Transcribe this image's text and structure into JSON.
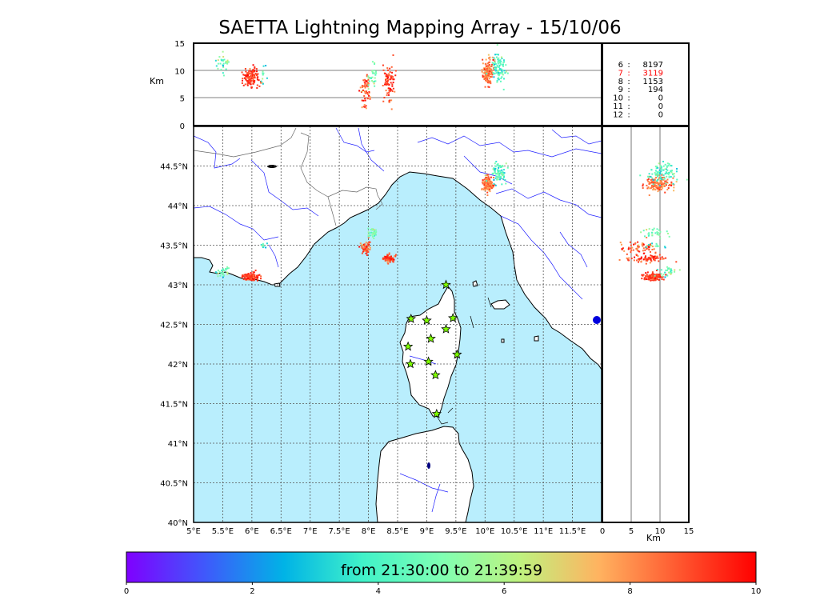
{
  "title": "SAETTA Lightning Mapping Array - 15/10/06",
  "colorbar_text": "from 21:30:00 to 21:39:59",
  "chart_data": {
    "type": "scatter",
    "time_colorbar": {
      "ticks": [
        "0",
        "2",
        "4",
        "6",
        "8",
        "10"
      ],
      "range": [
        0,
        10
      ],
      "colormap": "rainbow",
      "stops": [
        "#7f00ff",
        "#3f59fb",
        "#00b3e6",
        "#40f2c9",
        "#7fffb3",
        "#bff27f",
        "#ffb360",
        "#ff5930",
        "#ff0000"
      ]
    },
    "alt_lon_panel": {
      "ylabel": "Km",
      "ylim": [
        0,
        15
      ],
      "yticks": [
        "0",
        "5",
        "10",
        "15"
      ]
    },
    "map_panel": {
      "xlim": [
        5,
        12
      ],
      "ylim": [
        40,
        45
      ],
      "xticks": [
        "5°E",
        "5.5°E",
        "6°E",
        "6.5°E",
        "7°E",
        "7.5°E",
        "8°E",
        "8.5°E",
        "9°E",
        "9.5°E",
        "10°E",
        "10.5°E",
        "11°E",
        "11.5°E"
      ],
      "yticks": [
        "40°N",
        "40.5°N",
        "41°N",
        "41.5°N",
        "42°N",
        "42.5°N",
        "43°N",
        "43.5°N",
        "44°N",
        "44.5°N"
      ],
      "grid": true,
      "sea_color": "#b9eefd"
    },
    "lat_alt_panel": {
      "xlabel": "Km",
      "xlim": [
        0,
        15
      ],
      "xticks": [
        "0",
        "5",
        "10",
        "15"
      ]
    },
    "station_counts": [
      {
        "stations": "6",
        "count": "8197",
        "color": "#000000"
      },
      {
        "stations": "7",
        "count": "3119",
        "color": "#ff0000"
      },
      {
        "stations": "8",
        "count": "1153",
        "color": "#000000"
      },
      {
        "stations": "9",
        "count": "194",
        "color": "#000000"
      },
      {
        "stations": "10",
        "count": "0",
        "color": "#000000"
      },
      {
        "stations": "11",
        "count": "0",
        "color": "#000000"
      },
      {
        "stations": "12",
        "count": "0",
        "color": "#000000"
      }
    ],
    "stations": [
      {
        "lon": 9.33,
        "lat": 43.0
      },
      {
        "lon": 8.73,
        "lat": 42.57
      },
      {
        "lon": 9.0,
        "lat": 42.55
      },
      {
        "lon": 9.45,
        "lat": 42.58
      },
      {
        "lon": 9.33,
        "lat": 42.44
      },
      {
        "lon": 9.07,
        "lat": 42.32
      },
      {
        "lon": 8.68,
        "lat": 42.22
      },
      {
        "lon": 9.52,
        "lat": 42.12
      },
      {
        "lon": 9.03,
        "lat": 42.03
      },
      {
        "lon": 8.72,
        "lat": 42.0
      },
      {
        "lon": 9.15,
        "lat": 41.86
      },
      {
        "lon": 9.17,
        "lat": 41.37
      }
    ],
    "clusters": [
      {
        "lon": 10.05,
        "lat": 44.27,
        "lon_sd": 0.05,
        "lat_sd": 0.05,
        "alt": 9.8,
        "alt_sd": 1.2,
        "n": 140,
        "t": 8.3,
        "t_sd": 0.6
      },
      {
        "lon": 10.22,
        "lat": 44.42,
        "lon_sd": 0.06,
        "lat_sd": 0.06,
        "alt": 10.5,
        "alt_sd": 1.5,
        "n": 90,
        "t": 4.2,
        "t_sd": 0.8
      },
      {
        "lon": 5.98,
        "lat": 43.1,
        "lon_sd": 0.07,
        "lat_sd": 0.025,
        "alt": 8.8,
        "alt_sd": 0.9,
        "n": 130,
        "t": 9.2,
        "t_sd": 0.4
      },
      {
        "lon": 5.5,
        "lat": 43.17,
        "lon_sd": 0.05,
        "lat_sd": 0.03,
        "alt": 11.5,
        "alt_sd": 1.0,
        "n": 30,
        "t": 5.0,
        "t_sd": 1.0
      },
      {
        "lon": 7.95,
        "lat": 43.46,
        "lon_sd": 0.04,
        "lat_sd": 0.04,
        "alt": 6.8,
        "alt_sd": 1.5,
        "n": 60,
        "t": 8.8,
        "t_sd": 0.7
      },
      {
        "lon": 8.07,
        "lat": 43.66,
        "lon_sd": 0.04,
        "lat_sd": 0.04,
        "alt": 8.5,
        "alt_sd": 1.6,
        "n": 30,
        "t": 5.2,
        "t_sd": 1.0
      },
      {
        "lon": 8.35,
        "lat": 43.33,
        "lon_sd": 0.05,
        "lat_sd": 0.03,
        "alt": 7.8,
        "alt_sd": 1.6,
        "n": 80,
        "t": 8.9,
        "t_sd": 0.6
      },
      {
        "lon": 6.2,
        "lat": 43.5,
        "lon_sd": 0.03,
        "lat_sd": 0.02,
        "alt": 9.0,
        "alt_sd": 1.0,
        "n": 12,
        "t": 4.5,
        "t_sd": 1.0
      }
    ]
  }
}
